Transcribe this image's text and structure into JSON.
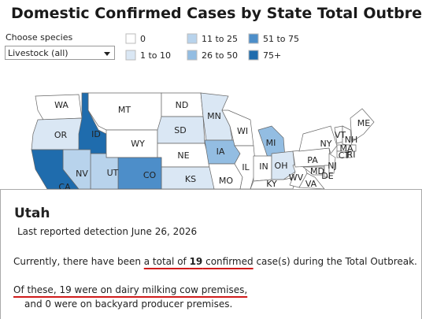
{
  "header": {
    "title": "Domestic Confirmed Cases by State Total Outbreak"
  },
  "filter": {
    "label": "Choose species",
    "value": "Livestock (all)"
  },
  "legend": [
    {
      "label": "0",
      "color": "#ffffff"
    },
    {
      "label": "1 to 10",
      "color": "#dae7f4"
    },
    {
      "label": "11 to 25",
      "color": "#b8d3ec"
    },
    {
      "label": "26 to 50",
      "color": "#93bde2"
    },
    {
      "label": "51 to 75",
      "color": "#4d8ec9"
    },
    {
      "label": "75+",
      "color": "#1f6cad"
    }
  ],
  "states": [
    {
      "label": "WA",
      "color": "#ffffff"
    },
    {
      "label": "OR",
      "color": "#dae7f4"
    },
    {
      "label": "MT",
      "color": "#ffffff"
    },
    {
      "label": "ID",
      "color": "#1f6cad"
    },
    {
      "label": "WY",
      "color": "#ffffff"
    },
    {
      "label": "ND",
      "color": "#ffffff"
    },
    {
      "label": "SD",
      "color": "#dae7f4"
    },
    {
      "label": "NE",
      "color": "#ffffff"
    },
    {
      "label": "KS",
      "color": "#dae7f4"
    },
    {
      "label": "CO",
      "color": "#4d8ec9"
    },
    {
      "label": "UT",
      "color": "#b8d3ec"
    },
    {
      "label": "NV",
      "color": "#b8d3ec"
    },
    {
      "label": "CA",
      "color": "#1f6cad"
    },
    {
      "label": "MN",
      "color": "#dae7f4"
    },
    {
      "label": "IA",
      "color": "#93bde2"
    },
    {
      "label": "MO",
      "color": "#ffffff"
    },
    {
      "label": "WI",
      "color": "#ffffff"
    },
    {
      "label": "IL",
      "color": "#ffffff"
    },
    {
      "label": "MI",
      "color": "#93bde2"
    },
    {
      "label": "IN",
      "color": "#ffffff"
    },
    {
      "label": "OH",
      "color": "#dae7f4"
    },
    {
      "label": "KY",
      "color": "#ffffff"
    },
    {
      "label": "WV",
      "color": "#ffffff"
    },
    {
      "label": "PA",
      "color": "#ffffff"
    },
    {
      "label": "NY",
      "color": "#ffffff"
    },
    {
      "label": "VA",
      "color": "#ffffff"
    },
    {
      "label": "MD",
      "color": "#ffffff"
    },
    {
      "label": "DE",
      "color": "#ffffff"
    },
    {
      "label": "NJ",
      "color": "#ffffff"
    },
    {
      "label": "VT",
      "color": "#ffffff"
    },
    {
      "label": "NH",
      "color": "#ffffff"
    },
    {
      "label": "ME",
      "color": "#ffffff"
    },
    {
      "label": "MA",
      "color": "#ffffff"
    },
    {
      "label": "CT",
      "color": "#ffffff"
    },
    {
      "label": "RI",
      "color": "#ffffff"
    }
  ],
  "tooltip": {
    "state": "Utah",
    "last_detection": "Last reported detection June 26, 2026",
    "line1": [
      "Currently, there have been ",
      "a total of ",
      "19",
      " confirmed",
      " case(s) during the Total Outbreak."
    ],
    "line2": "Of these, 19 were on dairy milking cow premises,",
    "line3": "and 0 were on backyard producer premises."
  }
}
